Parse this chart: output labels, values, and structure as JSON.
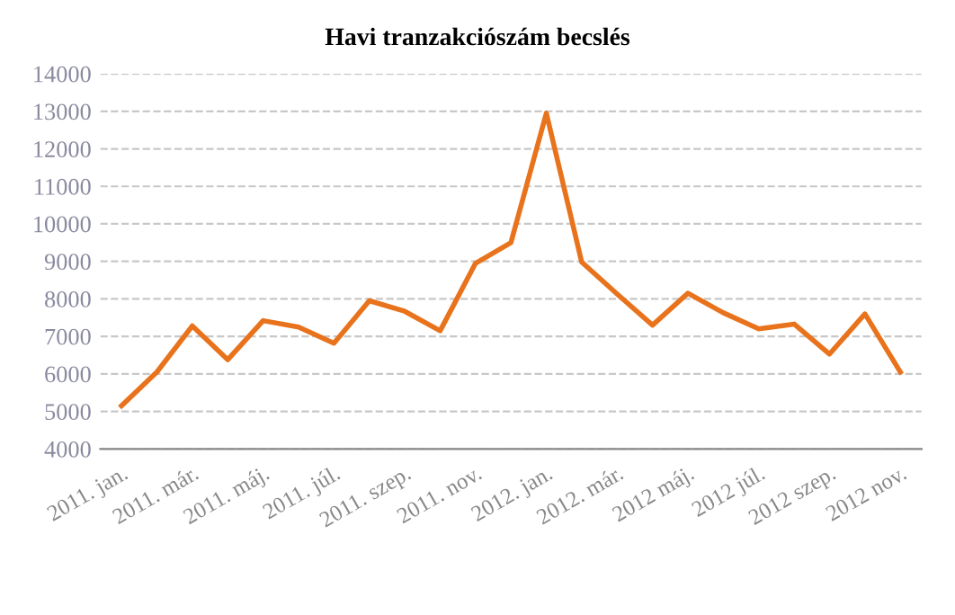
{
  "chart_data": {
    "type": "line",
    "title": "Havi tranzakciószám becslés",
    "categories": [
      "2011. jan.",
      null,
      "2011. már.",
      null,
      "2011. máj.",
      null,
      "2011. júl.",
      null,
      "2011. szep.",
      null,
      "2011. nov.",
      null,
      "2012. jan.",
      null,
      "2012. már.",
      null,
      "2012 máj.",
      null,
      "2012 júl.",
      null,
      "2012 szep.",
      null,
      "2012 nov."
    ],
    "series": [
      {
        "color": "#e8731c",
        "values": [
          5150,
          6050,
          7280,
          6380,
          7420,
          7250,
          6820,
          7950,
          7670,
          7150,
          8950,
          9500,
          12950,
          8980,
          8130,
          7300,
          8150,
          7630,
          7200,
          7330,
          6530,
          7600,
          6050
        ]
      }
    ],
    "ylim": [
      4000,
      14000
    ],
    "yticks": [
      4000,
      5000,
      6000,
      7000,
      8000,
      9000,
      10000,
      11000,
      12000,
      13000,
      14000
    ],
    "grid": "y",
    "legend": false,
    "marker": "none",
    "line_style": "solid"
  }
}
